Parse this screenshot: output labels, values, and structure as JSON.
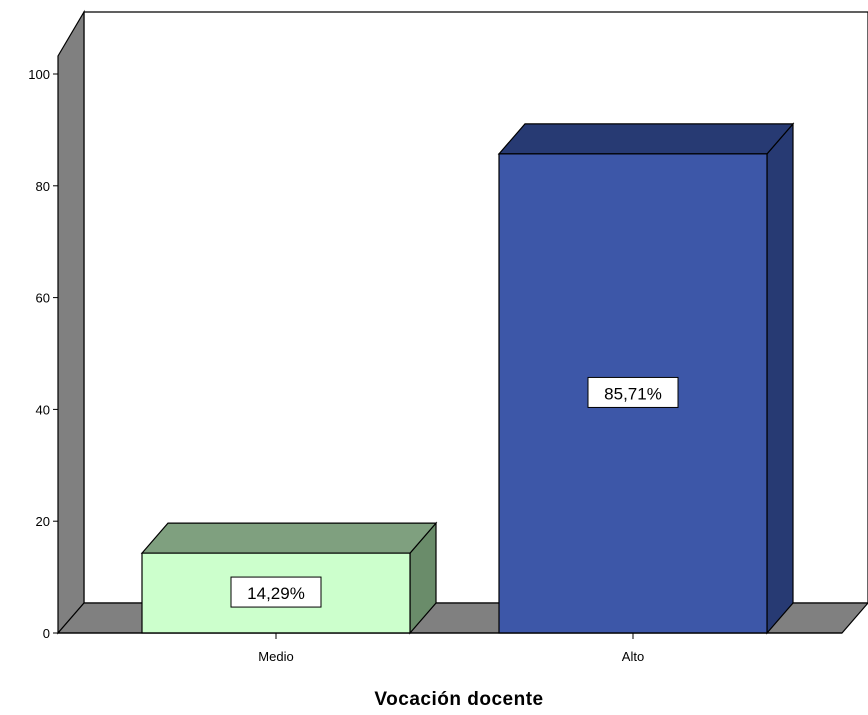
{
  "chart_data": {
    "type": "bar",
    "title": "",
    "xlabel": "Vocación docente",
    "ylabel": "",
    "categories": [
      "Medio",
      "Alto"
    ],
    "values": [
      14.29,
      85.71
    ],
    "data_labels": [
      "14,29%",
      "85,71%"
    ],
    "ylim": [
      0,
      105
    ],
    "yticks": [
      "0",
      "20",
      "40",
      "60",
      "80",
      "100"
    ],
    "grid": false,
    "legend": "none",
    "colors": {
      "bars": [
        {
          "front": "#ccffcc",
          "top": "#7fa07f",
          "side": "#6a8c6a"
        },
        {
          "front": "#3d57a8",
          "top": "#273a73",
          "side": "#273a73"
        }
      ],
      "back_wall": "#ffffff",
      "side_wall": "#808080",
      "floor": "#808080",
      "outline": "#000000"
    }
  }
}
